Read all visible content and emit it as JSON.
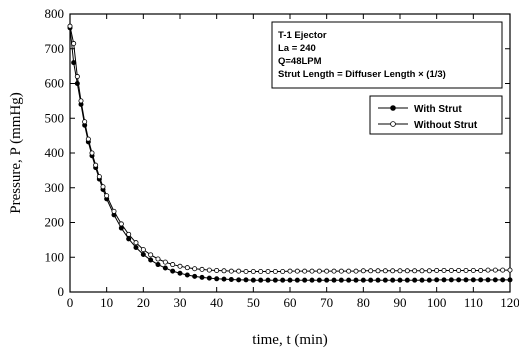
{
  "chart_data": {
    "type": "line",
    "xlabel": "time, t (min)",
    "ylabel": "Pressure, P (mmHg)",
    "xlim": [
      0,
      120
    ],
    "ylim": [
      0,
      800
    ],
    "x_ticks": [
      0,
      10,
      20,
      30,
      40,
      50,
      60,
      70,
      80,
      90,
      100,
      110,
      120
    ],
    "y_ticks": [
      0,
      100,
      200,
      300,
      400,
      500,
      600,
      700,
      800
    ],
    "grid": false,
    "legend_position": "right",
    "info_box": [
      "T-1 Ejector",
      "La = 240",
      "Q=48LPM",
      "Strut Length = Diffuser Length × (1/3)"
    ],
    "series": [
      {
        "name": "With Strut",
        "marker": "filled-circle",
        "x": [
          0,
          1,
          2,
          3,
          4,
          5,
          6,
          7,
          8,
          9,
          10,
          12,
          14,
          16,
          18,
          20,
          22,
          24,
          26,
          28,
          30,
          32,
          34,
          36,
          38,
          40,
          42,
          44,
          46,
          48,
          50,
          52,
          54,
          56,
          58,
          60,
          62,
          64,
          66,
          68,
          70,
          72,
          74,
          76,
          78,
          80,
          82,
          84,
          86,
          88,
          90,
          92,
          94,
          96,
          98,
          100,
          102,
          104,
          106,
          108,
          110,
          112,
          114,
          116,
          118,
          120
        ],
        "values": [
          760,
          660,
          600,
          540,
          480,
          432,
          392,
          358,
          325,
          295,
          268,
          222,
          184,
          153,
          128,
          108,
          92,
          79,
          69,
          60,
          54,
          49,
          45,
          42,
          40,
          38,
          37,
          36,
          35,
          35,
          34,
          34,
          34,
          34,
          34,
          34,
          34,
          34,
          34,
          34,
          34,
          34,
          34,
          34,
          34,
          34,
          34,
          34,
          34,
          34,
          34,
          34,
          34,
          34,
          34,
          35,
          35,
          35,
          35,
          35,
          35,
          35,
          35,
          35,
          35,
          35
        ]
      },
      {
        "name": "Without Strut",
        "marker": "open-circle",
        "x": [
          0,
          1,
          2,
          3,
          4,
          5,
          6,
          7,
          8,
          9,
          10,
          12,
          14,
          16,
          18,
          20,
          22,
          24,
          26,
          28,
          30,
          32,
          34,
          36,
          38,
          40,
          42,
          44,
          46,
          48,
          50,
          52,
          54,
          56,
          58,
          60,
          62,
          64,
          66,
          68,
          70,
          72,
          74,
          76,
          78,
          80,
          82,
          84,
          86,
          88,
          90,
          92,
          94,
          96,
          98,
          100,
          102,
          104,
          106,
          108,
          110,
          112,
          114,
          116,
          118,
          120
        ],
        "values": [
          765,
          715,
          620,
          550,
          490,
          440,
          400,
          365,
          332,
          303,
          277,
          232,
          196,
          166,
          142,
          122,
          107,
          95,
          86,
          79,
          74,
          70,
          67,
          65,
          63,
          62,
          61,
          60,
          60,
          59,
          59,
          59,
          59,
          59,
          59,
          60,
          60,
          60,
          60,
          60,
          60,
          60,
          60,
          60,
          60,
          61,
          61,
          61,
          61,
          61,
          61,
          61,
          61,
          61,
          61,
          62,
          62,
          62,
          62,
          62,
          62,
          62,
          63,
          63,
          63,
          63
        ]
      }
    ]
  }
}
